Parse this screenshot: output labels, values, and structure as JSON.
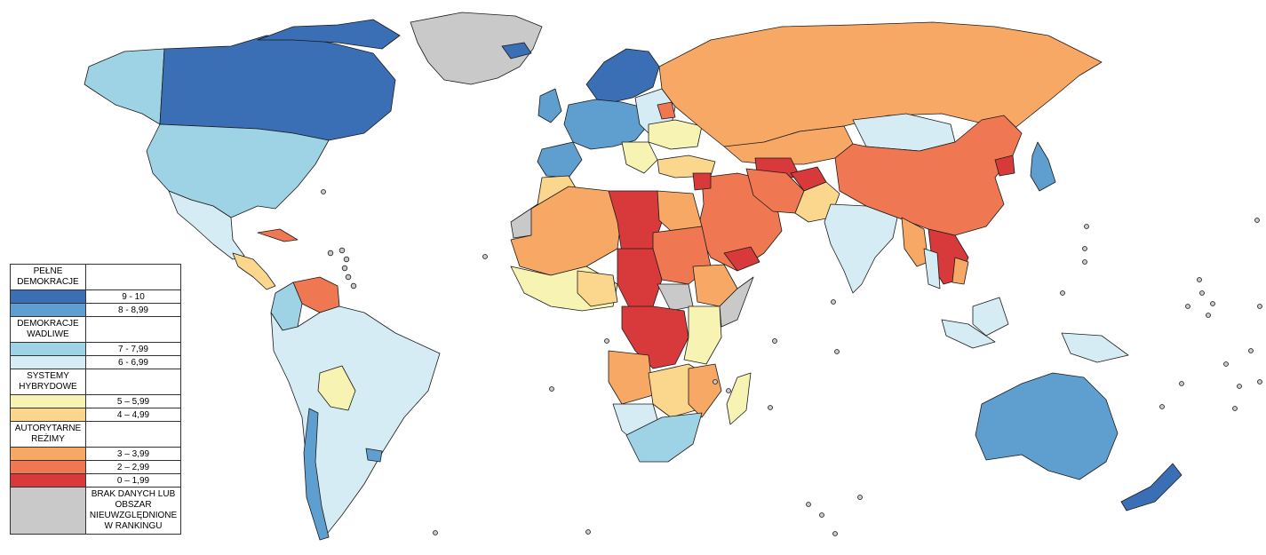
{
  "legend": {
    "full": {
      "title": "PEŁNE DEMOKRACJE",
      "ranges": [
        {
          "label": "9 - 10",
          "color": "#3a6fb5"
        },
        {
          "label": "8 - 8,99",
          "color": "#5f9fd0"
        }
      ]
    },
    "flawed": {
      "title": "DEMOKRACJE WADLIWE",
      "ranges": [
        {
          "label": "7 - 7,99",
          "color": "#9dd3e5"
        },
        {
          "label": "6 - 6,99",
          "color": "#d5ecf4"
        }
      ]
    },
    "hybrid": {
      "title": "SYSTEMY HYBRYDOWE",
      "ranges": [
        {
          "label": "5 – 5,99",
          "color": "#f7f3b3"
        },
        {
          "label": "4 – 4,99",
          "color": "#fbd68d"
        }
      ]
    },
    "authoritarian": {
      "title": "AUTORYTARNE REŻIMY",
      "ranges": [
        {
          "label": "3 – 3,99",
          "color": "#f6a864"
        },
        {
          "label": "2 – 2,99",
          "color": "#ef7751"
        },
        {
          "label": "0 – 1,99",
          "color": "#d8393a"
        }
      ]
    },
    "nodata": {
      "label": "BRAK DANYCH LUB OBSZAR NIEUWZGLĘDNIONE W RANKINGU",
      "color": "#c9c9c9"
    }
  }
}
